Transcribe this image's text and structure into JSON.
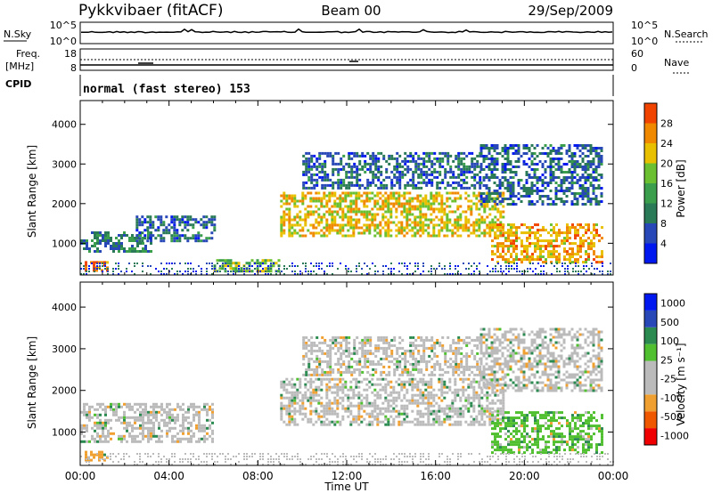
{
  "header": {
    "title": "Pykkvibaer (fitACF)",
    "beam": "Beam 00",
    "date": "29/Sep/2009"
  },
  "strips": {
    "nsky_label": "N.Sky",
    "nsky_ticks": [
      "10^5",
      "10^0"
    ],
    "nsearch_label": "N.Search",
    "nsearch_ticks": [
      "10^5",
      "10^0"
    ],
    "freq_label_1": "Freq.",
    "freq_label_2": "[MHz]",
    "freq_ticks": [
      "18",
      "8"
    ],
    "nave_label": "Nave",
    "nave_ticks": [
      "60",
      "0"
    ],
    "cpid_label": "CPID",
    "cpid_text": "normal (fast stereo) 153"
  },
  "colors": {
    "power_scale": [
      "#0018f0",
      "#2848b8",
      "#2a7a58",
      "#3a9e4c",
      "#6ac030",
      "#e8c000",
      "#f08800",
      "#f04400",
      "#e00000"
    ],
    "velocity_scale": [
      "#f00000",
      "#f05800",
      "#f0a030",
      "#bbbbbb",
      "#bbbbbb",
      "#50c030",
      "#2a8a50",
      "#2848b8",
      "#0018f0"
    ],
    "ground_scatter": "#bbbbbb"
  },
  "chart_data": [
    {
      "type": "heatmap",
      "panel": "power",
      "ylabel": "Slant Range [km]",
      "yticks": [
        "1000",
        "2000",
        "3000",
        "4000"
      ],
      "ylim": [
        200,
        4600
      ],
      "xlim": [
        0,
        24
      ],
      "colorbar_label": "Power [dB]",
      "colorbar_ticks": [
        "4",
        "8",
        "12",
        "16",
        "20",
        "24",
        "28"
      ],
      "features": [
        {
          "t0": 0.2,
          "t1": 1.2,
          "r0": 300,
          "r1": 550,
          "value_db": 27
        },
        {
          "t0": 0.0,
          "t1": 3.2,
          "r0": 800,
          "r1": 1300,
          "value_db": 10
        },
        {
          "t0": 2.5,
          "t1": 6.0,
          "r0": 1050,
          "r1": 1700,
          "value_db": 8
        },
        {
          "t0": 6.0,
          "t1": 9.0,
          "r0": 300,
          "r1": 600,
          "value_db": 18
        },
        {
          "t0": 9.0,
          "t1": 19.0,
          "r0": 1200,
          "r1": 2300,
          "value_db": 22
        },
        {
          "t0": 10.0,
          "t1": 18.0,
          "r0": 2400,
          "r1": 3300,
          "value_db": 8
        },
        {
          "t0": 18.5,
          "t1": 23.5,
          "r0": 500,
          "r1": 1500,
          "value_db": 24
        },
        {
          "t0": 18.0,
          "t1": 23.5,
          "r0": 2000,
          "r1": 3500,
          "value_db": 8
        }
      ]
    },
    {
      "type": "heatmap",
      "panel": "velocity",
      "ylabel": "Slant Range [km]",
      "yticks": [
        "1000",
        "2000",
        "3000",
        "4000"
      ],
      "ylim": [
        200,
        4600
      ],
      "xlim": [
        0,
        24
      ],
      "xlabel": "Time UT",
      "xticks": [
        "00:00",
        "04:00",
        "08:00",
        "12:00",
        "16:00",
        "20:00",
        "00:00"
      ],
      "colorbar_label": "Velocity [m s⁻¹]",
      "colorbar_ticks": [
        "1000",
        "500",
        "100",
        "25",
        "-25",
        "-100",
        "-500",
        "-1000"
      ],
      "features": [
        {
          "t0": 0.2,
          "t1": 1.2,
          "r0": 300,
          "r1": 550,
          "value_ms": -150
        },
        {
          "t0": 0.0,
          "t1": 6.0,
          "r0": 800,
          "r1": 1700,
          "value_ms": 0
        },
        {
          "t0": 9.0,
          "t1": 19.0,
          "r0": 1200,
          "r1": 2300,
          "value_ms": 0
        },
        {
          "t0": 10.0,
          "t1": 18.0,
          "r0": 2400,
          "r1": 3300,
          "value_ms": -50
        },
        {
          "t0": 18.5,
          "t1": 23.5,
          "r0": 500,
          "r1": 1500,
          "value_ms": 100
        },
        {
          "t0": 18.0,
          "t1": 23.5,
          "r0": 2000,
          "r1": 3500,
          "value_ms": 0
        }
      ]
    }
  ]
}
